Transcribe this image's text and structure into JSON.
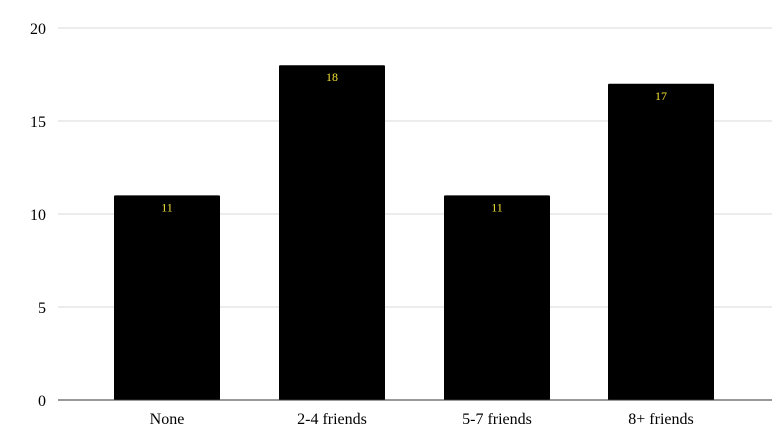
{
  "chart_data": {
    "type": "bar",
    "title": "",
    "xlabel": "",
    "ylabel": "",
    "categories": [
      "None",
      "2-4 friends",
      "5-7 friends",
      "8+ friends"
    ],
    "values": [
      11,
      18,
      11,
      17
    ],
    "data_labels": [
      "11",
      "18",
      "11",
      "17"
    ],
    "y_ticks": [
      0,
      5,
      10,
      15,
      20
    ],
    "y_tick_labels": [
      "0",
      "5",
      "10",
      "15",
      "20"
    ],
    "ylim": [
      0,
      20
    ],
    "grid": true,
    "legend": "none",
    "colors": {
      "bar": "#000000",
      "data_label": "#f2e033",
      "grid": "#d9d9d9"
    }
  }
}
